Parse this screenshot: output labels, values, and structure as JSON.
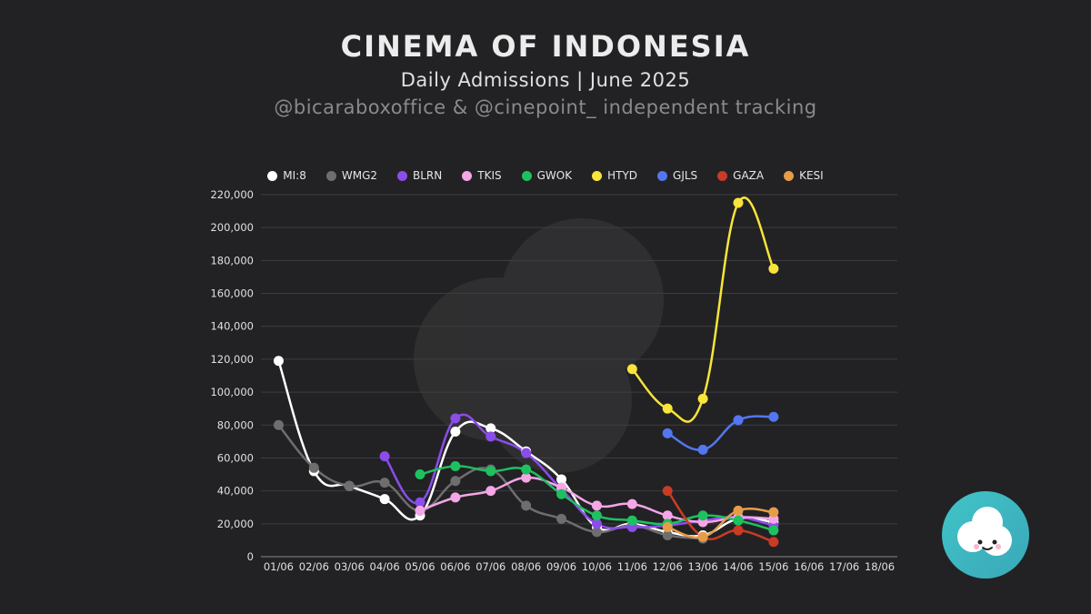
{
  "title": "CINEMA OF INDONESIA",
  "subtitle": "Daily Admissions | June 2025",
  "credit": "@bicaraboxoffice & @cinepoint_ independent tracking",
  "chart_data": {
    "type": "line",
    "x": [
      "01/06",
      "02/06",
      "03/06",
      "04/06",
      "05/06",
      "06/06",
      "07/06",
      "08/06",
      "09/06",
      "10/06",
      "11/06",
      "12/06",
      "13/06",
      "14/06",
      "15/06",
      "16/06",
      "17/06",
      "18/06"
    ],
    "ylim": [
      0,
      220000
    ],
    "yticks": [
      "0",
      "20,000",
      "40,000",
      "60,000",
      "80,000",
      "100,000",
      "120,000",
      "140,000",
      "160,000",
      "180,000",
      "200,000",
      "220,000"
    ],
    "grid": true,
    "legend_position": "top",
    "series": [
      {
        "name": "MI:8",
        "color": "#ffffff",
        "values": [
          119000,
          52000,
          43000,
          35000,
          25000,
          76000,
          78000,
          64000,
          47000,
          18000,
          20000,
          15000,
          13000,
          23000,
          21000,
          null,
          null,
          null
        ]
      },
      {
        "name": "WMG2",
        "color": "#6e6e6e",
        "values": [
          80000,
          54000,
          43000,
          45000,
          28000,
          46000,
          53000,
          31000,
          23000,
          15000,
          19000,
          13000,
          11000,
          null,
          null,
          null,
          null,
          null
        ]
      },
      {
        "name": "BLRN",
        "color": "#8b4dea",
        "values": [
          null,
          null,
          null,
          61000,
          33000,
          84000,
          73000,
          63000,
          41000,
          20000,
          18000,
          19000,
          22000,
          24000,
          19000,
          null,
          null,
          null
        ]
      },
      {
        "name": "TKIS",
        "color": "#f5a6e6",
        "values": [
          null,
          null,
          null,
          null,
          28000,
          36000,
          40000,
          48000,
          42000,
          31000,
          32000,
          25000,
          21000,
          24000,
          23000,
          null,
          null,
          null
        ]
      },
      {
        "name": "GWOK",
        "color": "#1ec15f",
        "values": [
          null,
          null,
          null,
          null,
          50000,
          55000,
          52000,
          53000,
          38000,
          25000,
          22000,
          20000,
          25000,
          22000,
          16000,
          null,
          null,
          null
        ]
      },
      {
        "name": "HTYD",
        "color": "#f8e43a",
        "values": [
          null,
          null,
          null,
          null,
          null,
          null,
          null,
          null,
          null,
          null,
          114000,
          90000,
          96000,
          215000,
          175000,
          null,
          null,
          null
        ]
      },
      {
        "name": "GJLS",
        "color": "#5476f0",
        "values": [
          null,
          null,
          null,
          null,
          null,
          null,
          null,
          null,
          null,
          null,
          null,
          75000,
          65000,
          83000,
          85000,
          null,
          null,
          null
        ]
      },
      {
        "name": "GAZA",
        "color": "#c93b24",
        "values": [
          null,
          null,
          null,
          null,
          null,
          null,
          null,
          null,
          null,
          null,
          null,
          40000,
          12000,
          16000,
          9000,
          null,
          null,
          null
        ]
      },
      {
        "name": "KESI",
        "color": "#e59d4a",
        "values": [
          null,
          null,
          null,
          null,
          null,
          null,
          null,
          null,
          null,
          null,
          null,
          18000,
          12000,
          28000,
          27000,
          null,
          null,
          null
        ]
      }
    ]
  }
}
